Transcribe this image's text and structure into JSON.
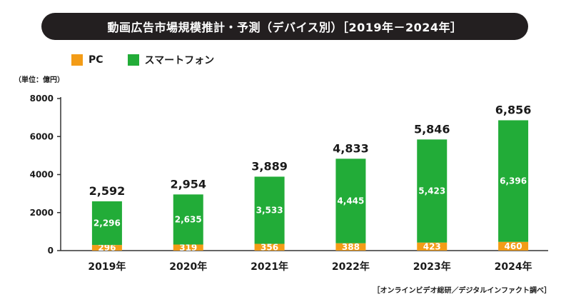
{
  "header": {
    "title": "動画広告市場規模推計・予測（デバイス別）［2019年－2024年］"
  },
  "legend": [
    {
      "label": "PC",
      "color": "#f39c17"
    },
    {
      "label": "スマートフォン",
      "color": "#22ac38"
    }
  ],
  "unit_label": "（単位：億円）",
  "source": "［オンラインビデオ総研／デジタルインファクト調べ］",
  "chart_data": {
    "type": "bar",
    "stacked": true,
    "categories": [
      "2019年",
      "2020年",
      "2021年",
      "2022年",
      "2023年",
      "2024年"
    ],
    "series": [
      {
        "name": "PC",
        "values": [
          296,
          319,
          356,
          388,
          423,
          460
        ],
        "color": "#f39c17"
      },
      {
        "name": "スマートフォン",
        "values": [
          2296,
          2635,
          3533,
          4445,
          5423,
          6396
        ],
        "color": "#22ac38"
      }
    ],
    "totals": [
      "2,592",
      "2,954",
      "3,889",
      "4,833",
      "5,846",
      "6,856"
    ],
    "segment_labels": [
      [
        "296",
        "319",
        "356",
        "388",
        "423",
        "460"
      ],
      [
        "2,296",
        "2,635",
        "3,533",
        "4,445",
        "5,423",
        "6,396"
      ]
    ],
    "yticks": [
      0,
      2000,
      4000,
      6000,
      8000
    ],
    "ylim": [
      0,
      8000
    ],
    "grid": false,
    "legend_position": "top-left"
  }
}
